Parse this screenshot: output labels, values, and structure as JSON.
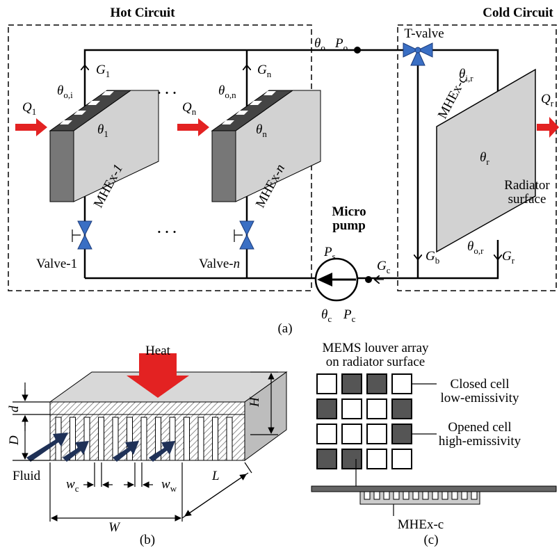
{
  "panel_a": {
    "caption": "(a)",
    "hot_circuit": "Hot Circuit",
    "cold_circuit": "Cold Circuit",
    "t_valve": "T-valve",
    "theta_o": {
      "base": "θ",
      "sub": "o"
    },
    "p_o": {
      "base": "P",
      "sub": "o"
    },
    "g_1": {
      "base": "G",
      "sub": "1"
    },
    "g_n": {
      "base": "G",
      "sub": "n"
    },
    "theta_oi": {
      "base": "θ",
      "sub": "o,i"
    },
    "theta_on": {
      "base": "θ",
      "sub": "o,n"
    },
    "theta_ir": {
      "base": "θ",
      "sub": "i,r"
    },
    "mhex_c": "MHEx-c",
    "q_r": {
      "base": "Q",
      "sub": "r"
    },
    "q_1": {
      "base": "Q",
      "sub": "1"
    },
    "q_n": {
      "base": "Q",
      "sub": "n"
    },
    "theta_1": {
      "base": "θ",
      "sub": "1"
    },
    "theta_n": {
      "base": "θ",
      "sub": "n"
    },
    "theta_r": {
      "base": "θ",
      "sub": "r"
    },
    "mhex_1": {
      "base": "MHEx-",
      "italic": "1"
    },
    "mhex_n": {
      "base": "MHEx-",
      "italic": "n"
    },
    "radiator_surface": [
      "Radiator",
      "surface"
    ],
    "micro_pump": [
      "Micro",
      "pump"
    ],
    "p_s": {
      "base": "P",
      "sub": "s"
    },
    "theta_or": {
      "base": "θ",
      "sub": "o,r"
    },
    "g_c": {
      "base": "G",
      "sub": "c"
    },
    "g_b": {
      "base": "G",
      "sub": "b"
    },
    "g_r": {
      "base": "G",
      "sub": "r"
    },
    "valve_1": "Valve-1",
    "valve_n": {
      "base": "Valve-",
      "italic": "n"
    },
    "theta_c": {
      "base": "θ",
      "sub": "c"
    },
    "p_c": {
      "base": "P",
      "sub": "c"
    }
  },
  "panel_b": {
    "caption": "(b)",
    "heat": "Heat",
    "h": "H",
    "d": "d",
    "d_big": "D",
    "fluid": "Fluid",
    "w_c": {
      "base": "w",
      "sub": "c"
    },
    "w_w": {
      "base": "w",
      "sub": "w"
    },
    "l": "L",
    "w": "W"
  },
  "panel_c": {
    "caption": "(c)",
    "louver_array": [
      "MEMS louver array",
      "on radiator surface"
    ],
    "closed_cell": [
      "Closed cell",
      "low-emissivity"
    ],
    "opened_cell": [
      "Opened cell",
      "high-emissivity"
    ],
    "mhex_c": "MHEx-c"
  }
}
